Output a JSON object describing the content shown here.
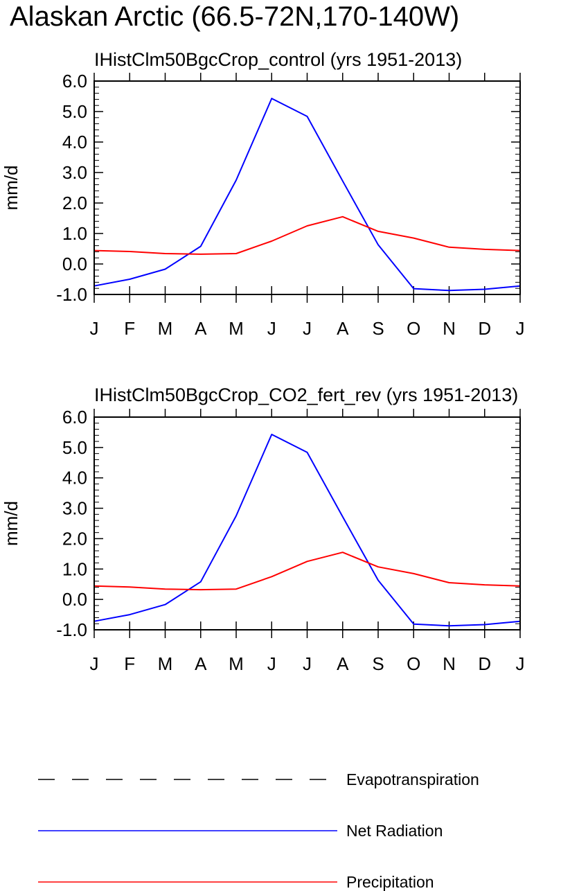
{
  "title": "Alaskan Arctic (66.5-72N,170-140W)",
  "colors": {
    "net_radiation": "#0000ff",
    "precipitation": "#ff0000",
    "evapotranspiration": "#000000"
  },
  "legend": [
    {
      "label": "Evapotranspiration",
      "style": "dashed",
      "color": "#000000"
    },
    {
      "label": "Net Radiation",
      "style": "solid",
      "color": "#0000ff"
    },
    {
      "label": "Precipitation",
      "style": "solid",
      "color": "#ff0000"
    }
  ],
  "chart_data": [
    {
      "type": "line",
      "title": "IHistClm50BgcCrop_control (yrs 1951-2013)",
      "ylabel": "mm/d",
      "xlabel": "",
      "ylim": [
        -1.0,
        6.0
      ],
      "yticks": [
        "6.0",
        "5.0",
        "4.0",
        "3.0",
        "2.0",
        "1.0",
        "0.0",
        "-1.0"
      ],
      "categories": [
        "J",
        "F",
        "M",
        "A",
        "M",
        "J",
        "J",
        "A",
        "S",
        "O",
        "N",
        "D",
        "J"
      ],
      "series": [
        {
          "name": "Net Radiation",
          "color": "#0000ff",
          "values": [
            -0.72,
            -0.5,
            -0.17,
            0.58,
            2.75,
            5.43,
            4.84,
            2.72,
            0.63,
            -0.81,
            -0.87,
            -0.83,
            -0.72
          ]
        },
        {
          "name": "Precipitation",
          "color": "#ff0000",
          "values": [
            0.44,
            0.41,
            0.34,
            0.32,
            0.34,
            0.75,
            1.25,
            1.55,
            1.07,
            0.85,
            0.55,
            0.48,
            0.44
          ]
        }
      ]
    },
    {
      "type": "line",
      "title": "IHistClm50BgcCrop_CO2_fert_rev (yrs 1951-2013)",
      "ylabel": "mm/d",
      "xlabel": "",
      "ylim": [
        -1.0,
        6.0
      ],
      "yticks": [
        "6.0",
        "5.0",
        "4.0",
        "3.0",
        "2.0",
        "1.0",
        "0.0",
        "-1.0"
      ],
      "categories": [
        "J",
        "F",
        "M",
        "A",
        "M",
        "J",
        "J",
        "A",
        "S",
        "O",
        "N",
        "D",
        "J"
      ],
      "series": [
        {
          "name": "Net Radiation",
          "color": "#0000ff",
          "values": [
            -0.72,
            -0.5,
            -0.17,
            0.58,
            2.75,
            5.43,
            4.84,
            2.72,
            0.63,
            -0.81,
            -0.87,
            -0.83,
            -0.72
          ]
        },
        {
          "name": "Precipitation",
          "color": "#ff0000",
          "values": [
            0.44,
            0.41,
            0.34,
            0.32,
            0.34,
            0.75,
            1.25,
            1.55,
            1.07,
            0.85,
            0.55,
            0.48,
            0.44
          ]
        }
      ]
    }
  ]
}
